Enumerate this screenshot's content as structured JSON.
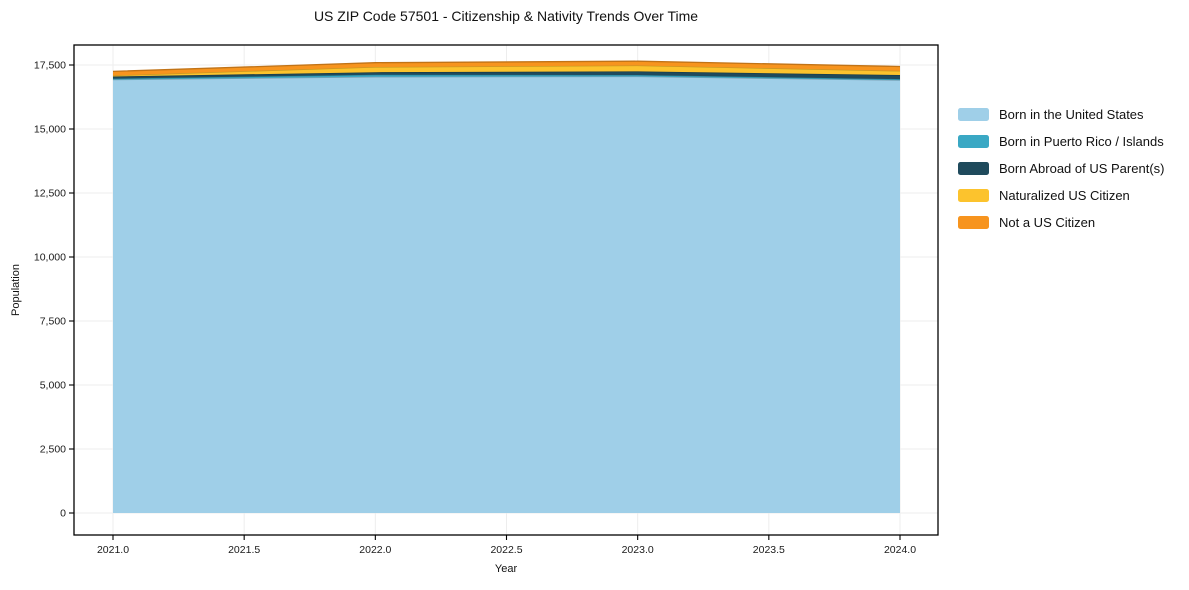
{
  "title": "US ZIP Code 57501 - Citizenship & Nativity Trends Over Time",
  "legend": {
    "items": [
      {
        "label": "Born in the United States",
        "color": "#9fcfe8"
      },
      {
        "label": "Born in Puerto Rico / Islands",
        "color": "#3aa8c4"
      },
      {
        "label": "Born Abroad of US Parent(s)",
        "color": "#1f4a5c"
      },
      {
        "label": "Naturalized US Citizen",
        "color": "#fcc32d"
      },
      {
        "label": "Not a US Citizen",
        "color": "#f7941e"
      }
    ]
  },
  "chart_data": {
    "type": "area",
    "stacked": true,
    "title": "US ZIP Code 57501 - Citizenship & Nativity Trends Over Time",
    "xlabel": "Year",
    "ylabel": "Population",
    "x": [
      2021,
      2022,
      2023,
      2024
    ],
    "series": [
      {
        "name": "Born in the United States",
        "color": "#9fcfe8",
        "values": [
          16930,
          17040,
          17050,
          16910
        ]
      },
      {
        "name": "Born in Puerto Rico / Islands",
        "color": "#3aa8c4",
        "values": [
          40,
          80,
          60,
          40
        ]
      },
      {
        "name": "Born Abroad of US Parent(s)",
        "color": "#1f4a5c",
        "values": [
          80,
          100,
          140,
          160
        ]
      },
      {
        "name": "Naturalized US Citizen",
        "color": "#fcc32d",
        "values": [
          40,
          200,
          230,
          160
        ]
      },
      {
        "name": "Not a US Citizen",
        "color": "#f7941e",
        "values": [
          160,
          170,
          170,
          170
        ]
      }
    ],
    "xticks": [
      2021.0,
      2021.5,
      2022.0,
      2022.5,
      2023.0,
      2023.5,
      2024.0
    ],
    "xticklabels": [
      "2021.0",
      "2021.5",
      "2022.0",
      "2022.5",
      "2023.0",
      "2023.5",
      "2024.0"
    ],
    "yticks": [
      0,
      2500,
      5000,
      7500,
      10000,
      12500,
      15000,
      17500
    ],
    "yticklabels": [
      "0",
      "2,500",
      "5,000",
      "7,500",
      "10,000",
      "12,500",
      "15,000",
      "17,500"
    ],
    "ylim": [
      0,
      17500
    ],
    "xlim": [
      2021,
      2024
    ],
    "grid": true,
    "legend_position": "outside-right",
    "frame_color": "#000000",
    "grid_color": "#ededed",
    "background": "#ffffff"
  }
}
